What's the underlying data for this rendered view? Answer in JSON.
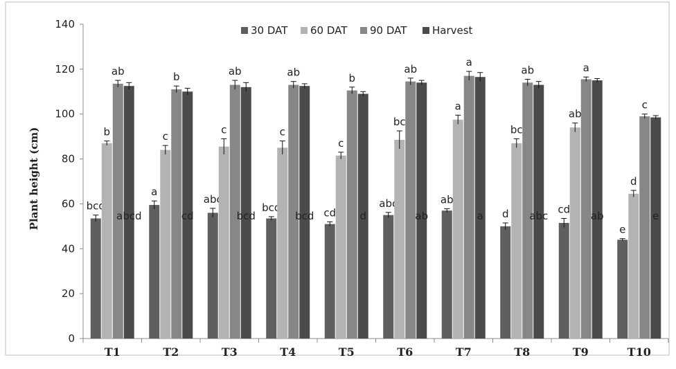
{
  "chart_data": {
    "type": "bar",
    "ylabel": "Plant height (cm)",
    "xlabel": "",
    "ylim": [
      0,
      140
    ],
    "yticks": [
      0,
      20,
      40,
      60,
      80,
      100,
      120,
      140
    ],
    "grid": false,
    "legend_position": "top",
    "categories": [
      "T1",
      "T2",
      "T3",
      "T4",
      "T5",
      "T6",
      "T7",
      "T8",
      "T9",
      "T10"
    ],
    "series": [
      {
        "name": "30 DAT",
        "color": "#5f5f5f",
        "values": [
          53.5,
          59.5,
          56,
          53.5,
          51,
          55,
          57,
          50,
          51.5,
          44
        ],
        "errors": [
          1.5,
          1.8,
          2,
          0.8,
          1,
          1.2,
          0.8,
          1.5,
          2,
          0.5
        ],
        "labels": [
          "bcd",
          "a",
          "abc",
          "bcd",
          "cd",
          "abc",
          "ab",
          "d",
          "cd",
          "e"
        ]
      },
      {
        "name": "60 DAT",
        "color": "#b3b3b3",
        "values": [
          87,
          84,
          85.5,
          85,
          81.5,
          88.5,
          97.5,
          87,
          94,
          64.5
        ],
        "errors": [
          1,
          2,
          3.5,
          3,
          1.5,
          4,
          2,
          2,
          2,
          1.5
        ],
        "labels": [
          "b",
          "c",
          "c",
          "c",
          "c",
          "bc",
          "a",
          "bc",
          "ab",
          "d"
        ]
      },
      {
        "name": "90 DAT",
        "color": "#878787",
        "values": [
          113.5,
          111,
          113,
          113,
          110.5,
          114.5,
          117,
          114,
          115.5,
          99
        ],
        "errors": [
          1.5,
          1.5,
          2,
          1.5,
          1.5,
          1.5,
          2,
          1.5,
          1,
          1
        ],
        "labels": [
          "ab",
          "b",
          "ab",
          "ab",
          "b",
          "ab",
          "a",
          "ab",
          "a",
          "c"
        ]
      },
      {
        "name": "Harvest",
        "color": "#4b4b4b",
        "values": [
          112.5,
          110,
          112,
          112.5,
          109,
          114,
          116.5,
          113,
          115,
          98.5
        ],
        "errors": [
          1.5,
          1.5,
          2,
          1,
          1,
          1,
          2,
          1.5,
          0.8,
          0.8
        ],
        "labels": [
          "abcd",
          "cd",
          "bcd",
          "bcd",
          "d",
          "ab",
          "a",
          "abc",
          "ab",
          "e"
        ]
      }
    ]
  }
}
